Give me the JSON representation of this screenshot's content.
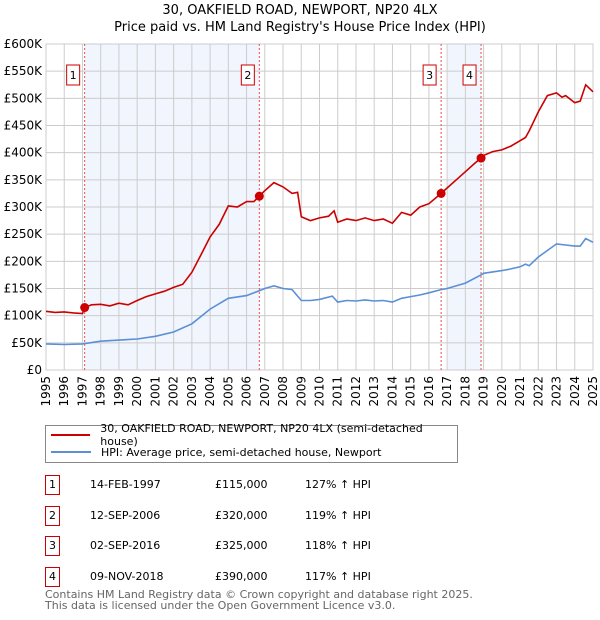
{
  "header": {
    "title": "30, OAKFIELD ROAD, NEWPORT, NP20 4LX",
    "subtitle": "Price paid vs. HM Land Registry's House Price Index (HPI)"
  },
  "chart_data": {
    "type": "line",
    "title": "30, OAKFIELD ROAD, NEWPORT, NP20 4LX",
    "subtitle": "Price paid vs. HM Land Registry's House Price Index (HPI)",
    "xlim": [
      1995,
      2025
    ],
    "ylim": [
      0,
      600000
    ],
    "x_ticks": [
      "1995",
      "1996",
      "1997",
      "1998",
      "1999",
      "2000",
      "2001",
      "2002",
      "2003",
      "2004",
      "2005",
      "2006",
      "2007",
      "2008",
      "2009",
      "2010",
      "2011",
      "2012",
      "2013",
      "2014",
      "2015",
      "2016",
      "2017",
      "2018",
      "2019",
      "2020",
      "2021",
      "2022",
      "2023",
      "2024",
      "2025"
    ],
    "y_ticks": [
      {
        "v": 0,
        "label": "£0"
      },
      {
        "v": 50000,
        "label": "£50K"
      },
      {
        "v": 100000,
        "label": "£100K"
      },
      {
        "v": 150000,
        "label": "£150K"
      },
      {
        "v": 200000,
        "label": "£200K"
      },
      {
        "v": 250000,
        "label": "£250K"
      },
      {
        "v": 300000,
        "label": "£300K"
      },
      {
        "v": 350000,
        "label": "£350K"
      },
      {
        "v": 400000,
        "label": "£400K"
      },
      {
        "v": 450000,
        "label": "£450K"
      },
      {
        "v": 500000,
        "label": "£500K"
      },
      {
        "v": 550000,
        "label": "£550K"
      },
      {
        "v": 600000,
        "label": "£600K"
      }
    ],
    "grid": true,
    "legend_placement": "below",
    "series": [
      {
        "name": "30, OAKFIELD ROAD, NEWPORT, NP20 4LX (semi-detached house)",
        "color": "#cc0000",
        "x": [
          1995,
          1995.5,
          1996,
          1996.5,
          1997,
          1997.12,
          1997.5,
          1998,
          1998.5,
          1999,
          1999.5,
          2000,
          2000.5,
          2001,
          2001.5,
          2002,
          2002.5,
          2003,
          2003.5,
          2004,
          2004.5,
          2005,
          2005.5,
          2006,
          2006.4,
          2006.7,
          2007,
          2007.5,
          2008,
          2008.5,
          2008.8,
          2009,
          2009.5,
          2010,
          2010.5,
          2010.8,
          2011,
          2011.5,
          2012,
          2012.5,
          2013,
          2013.5,
          2014,
          2014.5,
          2015,
          2015.5,
          2016,
          2016.67,
          2017,
          2017.5,
          2018,
          2018.5,
          2018.86,
          2019,
          2019.5,
          2020,
          2020.5,
          2021,
          2021.3,
          2021.5,
          2022,
          2022.5,
          2023,
          2023.3,
          2023.5,
          2024,
          2024.3,
          2024.6,
          2025
        ],
        "y": [
          108000,
          106000,
          107000,
          105000,
          104000,
          115000,
          120000,
          121000,
          118000,
          123000,
          120000,
          128000,
          135000,
          140000,
          145000,
          152000,
          158000,
          180000,
          212000,
          245000,
          268000,
          302000,
          300000,
          310000,
          310000,
          320000,
          330000,
          345000,
          337000,
          325000,
          327000,
          282000,
          275000,
          280000,
          283000,
          293000,
          272000,
          278000,
          275000,
          280000,
          275000,
          278000,
          270000,
          290000,
          285000,
          300000,
          306000,
          325000,
          335000,
          350000,
          365000,
          380000,
          390000,
          395000,
          402000,
          405000,
          412000,
          422000,
          428000,
          440000,
          475000,
          505000,
          510000,
          502000,
          505000,
          492000,
          495000,
          525000,
          512000
        ]
      },
      {
        "name": "HPI: Average price, semi-detached house, Newport",
        "color": "#5b8fd6",
        "x": [
          1995,
          1996,
          1997,
          1998,
          1999,
          2000,
          2001,
          2002,
          2003,
          2004,
          2005,
          2006,
          2006.7,
          2007,
          2007.5,
          2008,
          2008.5,
          2009,
          2009.5,
          2010,
          2010.7,
          2011,
          2011.5,
          2012,
          2012.5,
          2013,
          2013.5,
          2014,
          2014.5,
          2015,
          2015.5,
          2016,
          2016.67,
          2017,
          2018,
          2018.86,
          2019,
          2020,
          2020.5,
          2021,
          2021.3,
          2021.5,
          2022,
          2022.5,
          2023,
          2023.5,
          2024,
          2024.3,
          2024.6,
          2025
        ],
        "y": [
          48000,
          47000,
          48000,
          53000,
          55000,
          57000,
          62000,
          70000,
          85000,
          112000,
          132000,
          137000,
          146000,
          150000,
          155000,
          150000,
          148000,
          128000,
          128000,
          130000,
          136000,
          125000,
          128000,
          127000,
          129000,
          127000,
          128000,
          125000,
          132000,
          135000,
          138000,
          142000,
          148000,
          150000,
          160000,
          175000,
          178000,
          183000,
          186000,
          190000,
          195000,
          192000,
          208000,
          220000,
          232000,
          230000,
          228000,
          228000,
          242000,
          235000
        ]
      }
    ],
    "sales": [
      {
        "label": "1",
        "x": 1997.12,
        "y": 115000,
        "date": "14-FEB-1997",
        "price": "£115,000",
        "hpi": "127% ↑ HPI"
      },
      {
        "label": "2",
        "x": 2006.7,
        "y": 320000,
        "date": "12-SEP-2006",
        "price": "£320,000",
        "hpi": "119% ↑ HPI"
      },
      {
        "label": "3",
        "x": 2016.67,
        "y": 325000,
        "date": "02-SEP-2016",
        "price": "£325,000",
        "hpi": "118% ↑ HPI"
      },
      {
        "label": "4",
        "x": 2018.86,
        "y": 390000,
        "date": "09-NOV-2018",
        "price": "£390,000",
        "hpi": "117% ↑ HPI"
      }
    ],
    "shaded_ranges": [
      [
        1997.12,
        2006.7
      ],
      [
        2017.05,
        2018.86
      ]
    ]
  },
  "legend": {
    "items": [
      {
        "label": "30, OAKFIELD ROAD, NEWPORT, NP20 4LX (semi-detached house)",
        "color": "#cc0000"
      },
      {
        "label": "HPI: Average price, semi-detached house, Newport",
        "color": "#5b8fd6"
      }
    ]
  },
  "footer": {
    "line1": "Contains HM Land Registry data © Crown copyright and database right 2025.",
    "line2": "This data is licensed under the Open Government Licence v3.0."
  }
}
